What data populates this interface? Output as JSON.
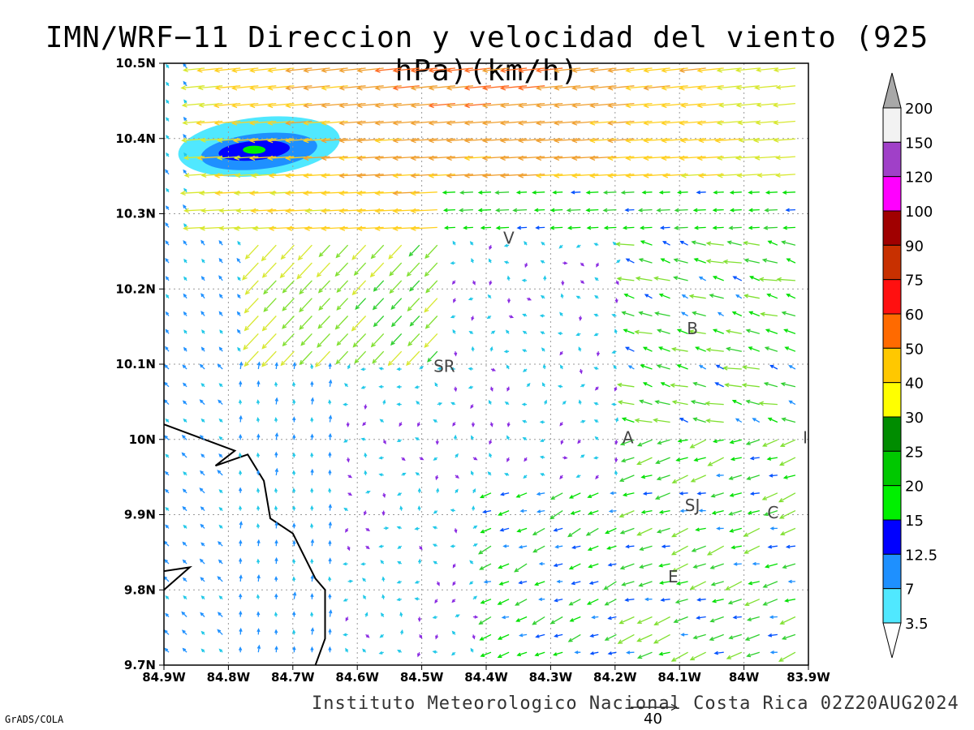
{
  "title": "IMN/WRF−11 Direccion y velocidad del viento (925 hPa)(km/h)",
  "footer": "Instituto Meteorologico Nacional Costa Rica 02Z20AUG2024",
  "credit": "GrADS/COLA",
  "reference_vector": {
    "label": "40",
    "speed_kmh": 40
  },
  "axes": {
    "x_labels": [
      "84.9W",
      "84.8W",
      "84.7W",
      "84.6W",
      "84.5W",
      "84.4W",
      "84.3W",
      "84.2W",
      "84.1W",
      "84W",
      "83.9W"
    ],
    "y_labels": [
      "10.5N",
      "10.4N",
      "10.3N",
      "10.2N",
      "10.1N",
      "10N",
      "9.9N",
      "9.8N",
      "9.7N"
    ],
    "lon_range": [
      -84.9,
      -83.9
    ],
    "lat_range": [
      9.7,
      10.5
    ],
    "grid": true
  },
  "legend": {
    "labels": [
      "200",
      "150",
      "120",
      "100",
      "90",
      "75",
      "60",
      "50",
      "40",
      "30",
      "25",
      "20",
      "15",
      "12.5",
      "7",
      "3.5"
    ],
    "colors": [
      "#f2f2f2",
      "#a040c8",
      "#ff00ff",
      "#a00000",
      "#c83000",
      "#ff1010",
      "#ff6a00",
      "#ffc800",
      "#ffff00",
      "#008c00",
      "#00c800",
      "#00f000",
      "#0000ff",
      "#1e90ff",
      "#50e8ff"
    ],
    "overflow_color": "#a8a8a8"
  },
  "cities": [
    {
      "label": "V",
      "lon": -84.365,
      "lat": 10.26
    },
    {
      "label": "B",
      "lon": -84.08,
      "lat": 10.14
    },
    {
      "label": "SR",
      "lon": -84.465,
      "lat": 10.09
    },
    {
      "label": "A",
      "lon": -84.18,
      "lat": 9.995
    },
    {
      "label": "I",
      "lon": -83.905,
      "lat": 9.995
    },
    {
      "label": "SJ",
      "lon": -84.08,
      "lat": 9.905
    },
    {
      "label": "C",
      "lon": -83.955,
      "lat": 9.895
    },
    {
      "label": "E",
      "lon": -84.11,
      "lat": 9.81
    }
  ],
  "speed_field": {
    "region": "north-west",
    "max_center": {
      "lon": -84.76,
      "lat": 10.385
    },
    "contours": [
      {
        "threshold_kmh": 3.5,
        "color": "#50e8ff"
      },
      {
        "threshold_kmh": 7,
        "color": "#1e90ff"
      },
      {
        "threshold_kmh": 12.5,
        "color": "#0000ff"
      },
      {
        "threshold_kmh": 20,
        "color": "#00f000"
      }
    ]
  },
  "coastline": [
    [
      -84.9,
      10.02
    ],
    [
      -84.79,
      9.985
    ],
    [
      -84.82,
      9.965
    ],
    [
      -84.77,
      9.98
    ],
    [
      -84.745,
      9.945
    ],
    [
      -84.735,
      9.895
    ],
    [
      -84.7,
      9.875
    ],
    [
      -84.665,
      9.815
    ],
    [
      -84.65,
      9.8
    ],
    [
      -84.65,
      9.735
    ],
    [
      -84.665,
      9.7
    ]
  ],
  "coastline_peninsula": [
    [
      -84.9,
      9.8
    ],
    [
      -84.86,
      9.83
    ],
    [
      -84.9,
      9.825
    ]
  ]
}
